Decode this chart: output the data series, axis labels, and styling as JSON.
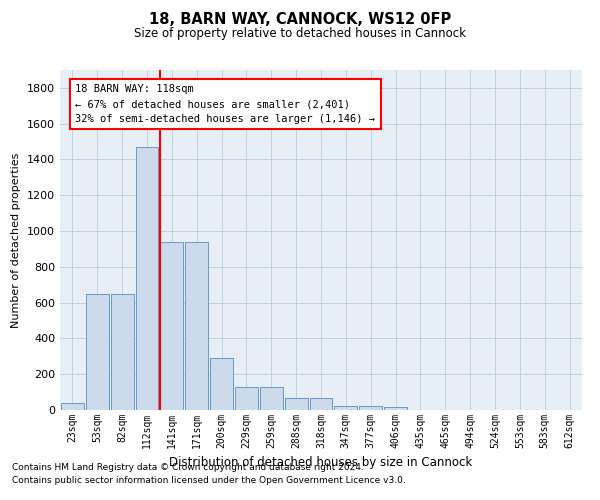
{
  "title": "18, BARN WAY, CANNOCK, WS12 0FP",
  "subtitle": "Size of property relative to detached houses in Cannock",
  "xlabel": "Distribution of detached houses by size in Cannock",
  "ylabel": "Number of detached properties",
  "bar_labels": [
    "23sqm",
    "53sqm",
    "82sqm",
    "112sqm",
    "141sqm",
    "171sqm",
    "200sqm",
    "229sqm",
    "259sqm",
    "288sqm",
    "318sqm",
    "347sqm",
    "377sqm",
    "406sqm",
    "435sqm",
    "465sqm",
    "494sqm",
    "524sqm",
    "553sqm",
    "583sqm",
    "612sqm"
  ],
  "bar_values": [
    40,
    650,
    650,
    1470,
    940,
    940,
    290,
    130,
    130,
    65,
    65,
    25,
    25,
    15,
    0,
    0,
    0,
    0,
    0,
    0,
    0
  ],
  "bar_color": "#ccdaeb",
  "bar_edge_color": "#6699cc",
  "grid_color": "#bbccdd",
  "bg_color": "#e8eef6",
  "red_line_x": 3.52,
  "annotation_text": "18 BARN WAY: 118sqm\n← 67% of detached houses are smaller (2,401)\n32% of semi-detached houses are larger (1,146) →",
  "footnote1": "Contains HM Land Registry data © Crown copyright and database right 2024.",
  "footnote2": "Contains public sector information licensed under the Open Government Licence v3.0.",
  "ylim": [
    0,
    1900
  ],
  "yticks": [
    0,
    200,
    400,
    600,
    800,
    1000,
    1200,
    1400,
    1600,
    1800
  ]
}
